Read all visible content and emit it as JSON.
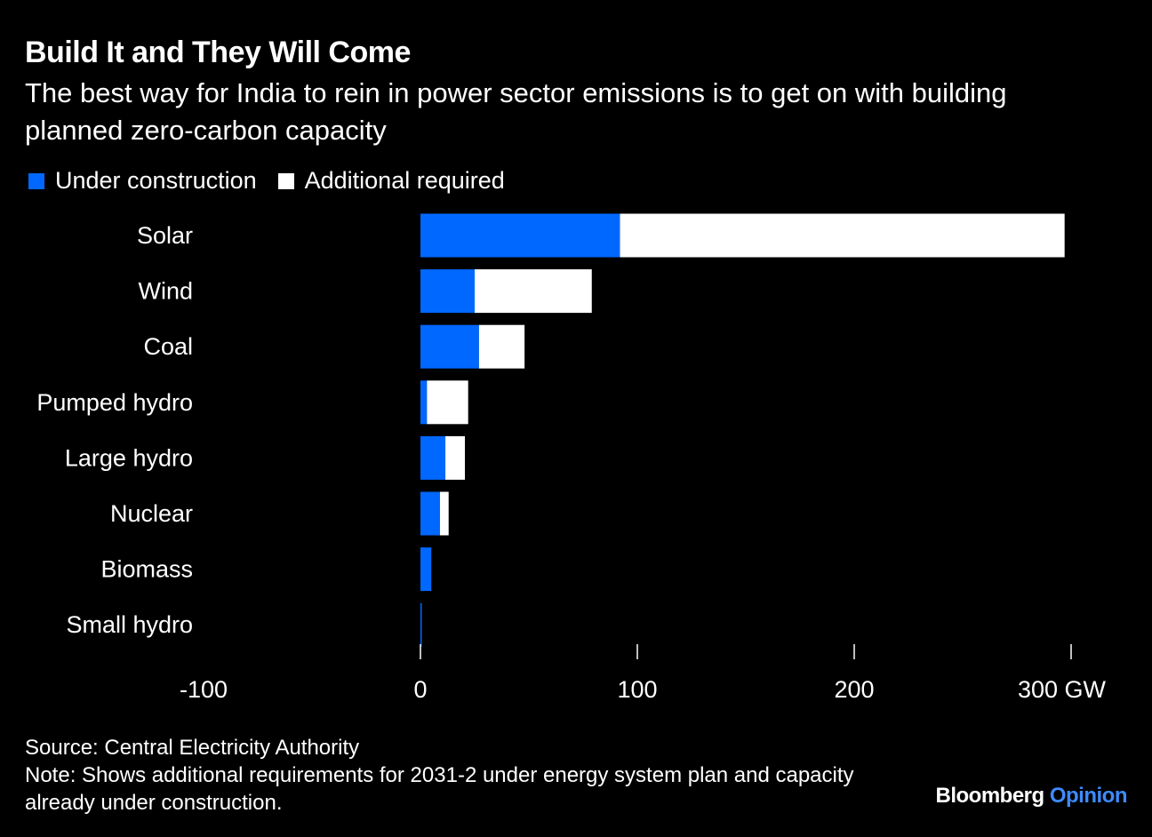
{
  "title": "Build It and They Will Come",
  "subtitle": "The best way for India to rein in power sector emissions is to get on with building planned zero-carbon capacity",
  "legend": [
    {
      "label": "Under construction",
      "color": "#0068ff"
    },
    {
      "label": "Additional required",
      "color": "#ffffff"
    }
  ],
  "chart_data": {
    "type": "bar",
    "orientation": "horizontal",
    "stacked": true,
    "categories": [
      "Solar",
      "Wind",
      "Coal",
      "Pumped hydro",
      "Large hydro",
      "Nuclear",
      "Biomass",
      "Small hydro"
    ],
    "series": [
      {
        "name": "Under construction",
        "color": "#0068ff",
        "values": [
          92,
          25,
          27,
          3,
          11.5,
          9,
          5,
          0.5
        ]
      },
      {
        "name": "Additional required",
        "color": "#ffffff",
        "values": [
          205,
          54,
          21,
          19,
          9,
          4,
          0,
          0
        ]
      }
    ],
    "xlim": [
      -100,
      300
    ],
    "ticks": [
      -100,
      0,
      100,
      200,
      300
    ],
    "tick_labels": [
      "-100",
      "0",
      "100",
      "200",
      "300 GW"
    ],
    "xlabel": "",
    "ylabel": "",
    "unit": "GW",
    "grid": false,
    "legend_position": "top-left"
  },
  "footer": {
    "source": "Source: Central Electricity Authority",
    "note": "Note: Shows additional requirements for 2031-2 under energy system plan and capacity already under construction."
  },
  "brand": {
    "name": "Bloomberg",
    "section": "Opinion",
    "section_color": "#3d8bff"
  }
}
